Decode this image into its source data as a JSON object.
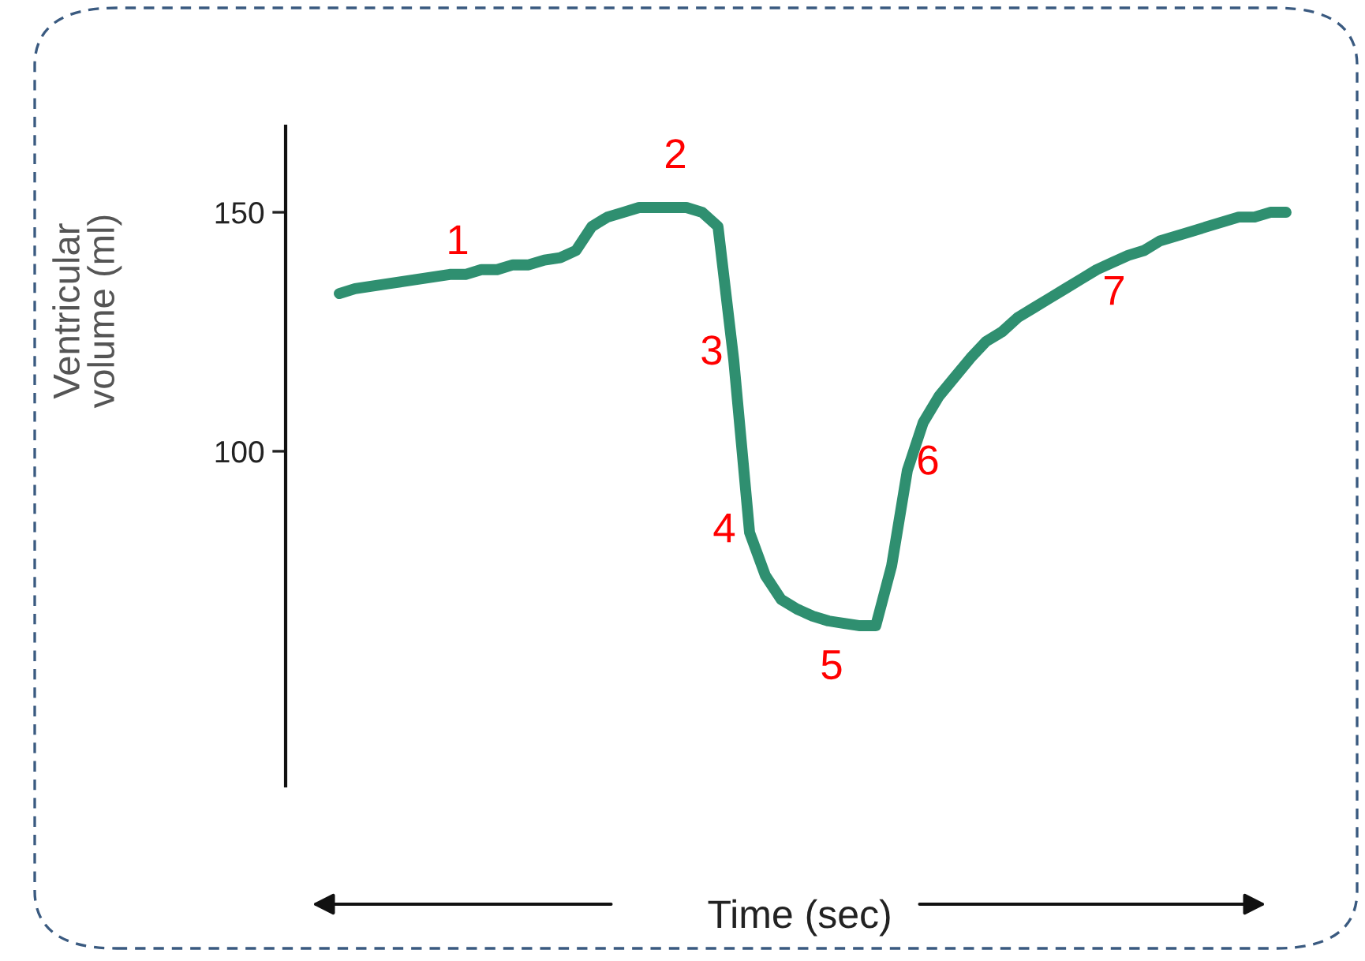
{
  "chart_data": {
    "type": "line",
    "xlabel": "Time (sec)",
    "ylabel": "Ventricular\nvolume (ml)",
    "categories": [
      null,
      null,
      null,
      null,
      null,
      null,
      null,
      null,
      null,
      null,
      null,
      null,
      null,
      null,
      null,
      null,
      null,
      null,
      null,
      null,
      null,
      null,
      null,
      null,
      null,
      null,
      null,
      null,
      null,
      null,
      null,
      null,
      null,
      null,
      null,
      null,
      null,
      null,
      null,
      null,
      null,
      null,
      null,
      null,
      null,
      null,
      null,
      null,
      null,
      null,
      null,
      null,
      null,
      null,
      null,
      null,
      null,
      null,
      null,
      null,
      null
    ],
    "series": [
      {
        "color": "#2f8f70",
        "values": [
          133,
          134,
          134.5,
          135,
          135.5,
          136,
          136.5,
          137,
          137,
          138,
          138,
          139,
          139,
          140,
          140.5,
          142,
          147,
          149,
          150,
          151,
          151,
          151,
          151,
          150,
          147,
          119,
          83,
          74,
          69,
          67,
          65.5,
          64.5,
          64,
          63.5,
          63.5,
          76,
          96,
          106,
          111.5,
          115.5,
          119.5,
          123,
          125,
          128,
          130,
          132,
          134,
          136,
          138,
          139.5,
          141,
          142,
          144,
          145,
          146,
          147,
          148,
          149,
          149,
          150,
          150
        ]
      }
    ],
    "ylim": [
      30,
      168
    ],
    "yticks": [
      100,
      150
    ],
    "grid": false,
    "legend": false,
    "marker": "none",
    "line_style": "solid",
    "tick_labels": "y",
    "annotations": [
      "1",
      "2",
      "3",
      "4",
      "5",
      "6",
      "7"
    ]
  }
}
